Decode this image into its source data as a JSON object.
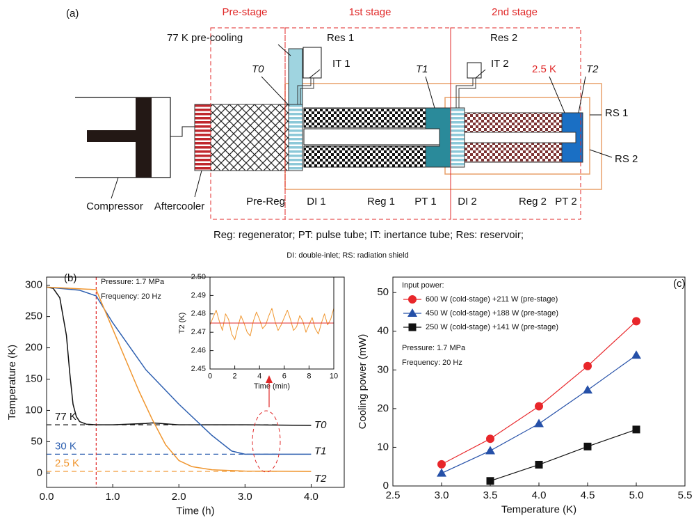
{
  "diagram": {
    "panel_label": "(a)",
    "labels": {
      "pre_stage": "Pre-stage",
      "first_stage": "1st stage",
      "second_stage": "2nd stage",
      "precooling": "77 K pre-cooling",
      "res1": "Res 1",
      "it1": "IT 1",
      "t0": "T0",
      "t1": "T1",
      "res2": "Res 2",
      "it2": "IT 2",
      "cold_temp": "2.5 K",
      "t2": "T2",
      "rs1": "RS 1",
      "rs2": "RS 2",
      "compressor": "Compressor",
      "aftercooler": "Aftercooler",
      "prereg": "Pre-Reg",
      "di1": "DI 1",
      "reg1": "Reg 1",
      "pt1": "PT 1",
      "di2": "DI 2",
      "reg2": "Reg 2",
      "pt2": "PT 2"
    },
    "caption": [
      "Reg: regenerator; PT: pulse tube; IT: inertance tube; Res: reservoir;",
      "DI: double-inlet; RS: radiation shield"
    ]
  },
  "chart_data": [
    {
      "type": "line",
      "panel_label": "(b)",
      "xlabel": "Time (h)",
      "ylabel": "Temperature (K)",
      "xlim": [
        0,
        4.5
      ],
      "ylim": [
        -23,
        313
      ],
      "xticks": [
        {
          "value": 0,
          "label": "0.0"
        },
        {
          "value": 1,
          "label": "1.0"
        },
        {
          "value": 2,
          "label": "2.0"
        },
        {
          "value": 3,
          "label": "3.0"
        },
        {
          "value": 4,
          "label": "4.0"
        }
      ],
      "yticks": [
        0,
        50,
        100,
        150,
        200,
        250,
        300
      ],
      "annotations": [
        "Pressure: 1.7 MPa",
        "Frequency: 20 Hz"
      ],
      "vline": {
        "value": 0.75,
        "color": "#e02828"
      },
      "ref_lines": [
        {
          "value": 77,
          "label": "77 K",
          "color": "#111111"
        },
        {
          "value": 30,
          "label": "30 K",
          "color": "#2d5fb0"
        },
        {
          "value": 2.5,
          "label": "2.5 K",
          "color": "#f0962f"
        }
      ],
      "series": [
        {
          "name": "T0",
          "color": "#111111",
          "x": [
            0,
            0.1,
            0.2,
            0.3,
            0.35,
            0.4,
            0.45,
            0.5,
            0.6,
            0.75,
            1.0,
            1.5,
            1.6,
            2.0,
            3.0,
            4.0
          ],
          "values": [
            297,
            295,
            280,
            220,
            160,
            110,
            90,
            82,
            78,
            77,
            77,
            79,
            80,
            77,
            77,
            76
          ]
        },
        {
          "name": "T1",
          "color": "#2d5fb0",
          "x": [
            0,
            0.5,
            0.75,
            1.0,
            1.5,
            2.0,
            2.5,
            2.8,
            3.0,
            4.0
          ],
          "values": [
            297,
            292,
            283,
            240,
            165,
            110,
            60,
            35,
            30,
            30
          ]
        },
        {
          "name": "T2",
          "color": "#f0962f",
          "x": [
            0,
            0.75,
            0.8,
            1.0,
            1.2,
            1.4,
            1.6,
            1.8,
            2.0,
            2.2,
            2.5,
            3.0,
            4.0
          ],
          "values": [
            297,
            293,
            280,
            230,
            180,
            130,
            85,
            45,
            20,
            10,
            5,
            3,
            2.5
          ]
        }
      ]
    },
    {
      "type": "line",
      "xlabel": "Time (min)",
      "ylabel": "T2 (K)",
      "xlim": [
        0,
        10
      ],
      "ylim": [
        2.45,
        2.5
      ],
      "xticks": [
        0,
        2,
        4,
        6,
        8,
        10
      ],
      "yticks": [
        2.45,
        2.46,
        2.47,
        2.48,
        2.49,
        {
          "value": 2.5,
          "label": "2.50"
        }
      ],
      "series": [
        {
          "color": "#f0962f",
          "x": [
            0,
            0.25,
            0.5,
            0.75,
            1,
            1.25,
            1.5,
            1.75,
            2,
            2.25,
            2.5,
            2.75,
            3,
            3.25,
            3.5,
            3.75,
            4,
            4.25,
            4.5,
            4.75,
            5,
            5.25,
            5.5,
            5.75,
            6,
            6.25,
            6.5,
            6.75,
            7,
            7.25,
            7.5,
            7.75,
            8,
            8.25,
            8.5,
            8.75,
            9,
            9.25,
            9.5,
            9.75,
            10
          ],
          "values": [
            2.474,
            2.478,
            2.482,
            2.476,
            2.471,
            2.48,
            2.477,
            2.469,
            2.466,
            2.473,
            2.479,
            2.475,
            2.47,
            2.468,
            2.476,
            2.481,
            2.477,
            2.472,
            2.474,
            2.479,
            2.483,
            2.476,
            2.471,
            2.474,
            2.478,
            2.482,
            2.477,
            2.471,
            2.473,
            2.479,
            2.476,
            2.47,
            2.474,
            2.478,
            2.472,
            2.469,
            2.475,
            2.48,
            2.474,
            2.477,
            2.483
          ]
        },
        {
          "color": "#e02828",
          "x": [
            0,
            10
          ],
          "values": [
            2.475,
            2.475
          ]
        }
      ]
    },
    {
      "type": "line",
      "panel_label": "(c)",
      "xlabel": "Temperature (K)",
      "ylabel": "Cooling power (mW)",
      "xlim": [
        2.5,
        5.5
      ],
      "ylim": [
        0,
        54
      ],
      "xticks": [
        2.5,
        {
          "value": 3,
          "label": "3.0"
        },
        3.5,
        {
          "value": 4,
          "label": "4.0"
        },
        4.5,
        {
          "value": 5,
          "label": "5.0"
        },
        5.5
      ],
      "yticks": [
        0,
        10,
        20,
        30,
        40,
        50
      ],
      "legend_title": "Input power:",
      "annotations": [
        "Pressure: 1.7 MPa",
        "Frequency: 20 Hz"
      ],
      "series": [
        {
          "name": "600 W (cold-stage) +211 W (pre-stage)",
          "color": "#e8262a",
          "marker": "circle",
          "x": [
            3,
            3.5,
            4,
            4.5,
            5
          ],
          "values": [
            5.6,
            12.2,
            20.6,
            31,
            42.6
          ]
        },
        {
          "name": "450 W (cold-stage) +188 W (pre-stage)",
          "color": "#2550a8",
          "marker": "triangle",
          "x": [
            3,
            3.5,
            4,
            4.5,
            5
          ],
          "values": [
            3.3,
            9.1,
            16.1,
            24.8,
            33.8
          ]
        },
        {
          "name": "250 W (cold-stage) +141 W (pre-stage)",
          "color": "#111111",
          "marker": "square",
          "x": [
            3.5,
            4,
            4.5,
            5
          ],
          "values": [
            1.3,
            5.5,
            10.2,
            14.6
          ]
        }
      ]
    }
  ]
}
